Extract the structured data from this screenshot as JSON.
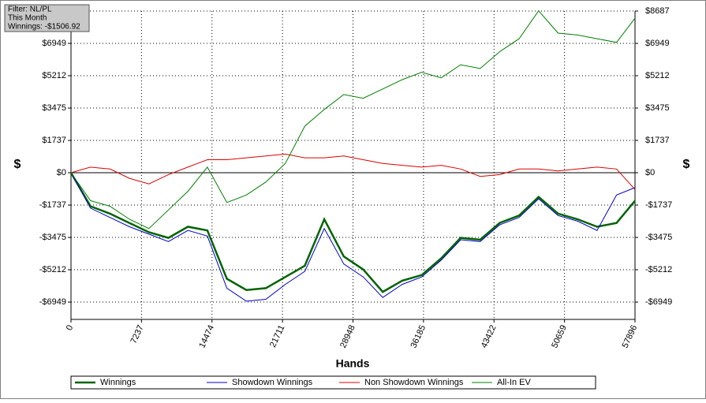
{
  "chart_data": {
    "type": "line",
    "annotations": [
      "Filter: NL/PL",
      "This Month",
      "Winnings: -$1506.92"
    ],
    "x_label": "Hands",
    "y_label": "$",
    "x": [
      0,
      2000,
      4000,
      6000,
      8000,
      10000,
      12000,
      14000,
      16000,
      18000,
      20000,
      22000,
      24000,
      26000,
      28000,
      30000,
      32000,
      34000,
      36000,
      38000,
      40000,
      42000,
      44000,
      46000,
      48000,
      50000,
      52000,
      54000,
      56000,
      57896
    ],
    "series": [
      {
        "name": "Winnings",
        "color": "#006400",
        "values": [
          0,
          -1800,
          -2200,
          -2700,
          -3200,
          -3500,
          -2900,
          -3100,
          -5700,
          -6300,
          -6200,
          -5600,
          -5000,
          -2500,
          -4500,
          -5200,
          -6400,
          -5800,
          -5500,
          -4600,
          -3500,
          -3600,
          -2700,
          -2300,
          -1300,
          -2200,
          -2500,
          -2900,
          -2700,
          -1507
        ]
      },
      {
        "name": "Showdown Winnings",
        "color": "#0000cc",
        "values": [
          0,
          -1900,
          -2400,
          -2900,
          -3300,
          -3700,
          -3100,
          -3400,
          -6200,
          -6900,
          -6800,
          -6000,
          -5300,
          -3000,
          -4900,
          -5600,
          -6700,
          -6000,
          -5600,
          -4700,
          -3600,
          -3700,
          -2800,
          -2400,
          -1400,
          -2300,
          -2600,
          -3100,
          -1200,
          -800
        ]
      },
      {
        "name": "Non Showdown Winnings",
        "color": "#dd0000",
        "values": [
          0,
          300,
          200,
          -300,
          -600,
          -100,
          300,
          700,
          700,
          800,
          900,
          1000,
          800,
          800,
          900,
          700,
          500,
          400,
          300,
          400,
          200,
          -200,
          -100,
          200,
          200,
          100,
          200,
          300,
          200,
          -900
        ]
      },
      {
        "name": "All-In EV",
        "color": "#008000",
        "values": [
          0,
          -1500,
          -1800,
          -2500,
          -3000,
          -2000,
          -1000,
          300,
          -1600,
          -1200,
          -500,
          500,
          2500,
          3400,
          4200,
          4000,
          4500,
          5000,
          5400,
          5100,
          5800,
          5600,
          6500,
          7200,
          8700,
          7500,
          7400,
          7200,
          7000,
          8300
        ]
      }
    ],
    "xlim": [
      0,
      57896
    ],
    "xticks": [
      0,
      7237,
      14474,
      21711,
      28948,
      36185,
      43422,
      50659,
      57896
    ],
    "ylim": [
      -7880,
      8687
    ],
    "yticks": [
      {
        "value": -6949,
        "label": "-$6949"
      },
      {
        "value": -5212,
        "label": "-$5212"
      },
      {
        "value": -3475,
        "label": "-$3475"
      },
      {
        "value": -1737,
        "label": "-$1737"
      },
      {
        "value": 0,
        "label": "$0"
      },
      {
        "value": 1737,
        "label": "$1737"
      },
      {
        "value": 3475,
        "label": "$3475"
      },
      {
        "value": 5212,
        "label": "$5212"
      },
      {
        "value": 6949,
        "label": "$6949"
      },
      {
        "value": 8687,
        "label": "$8687"
      }
    ],
    "grid": true
  }
}
